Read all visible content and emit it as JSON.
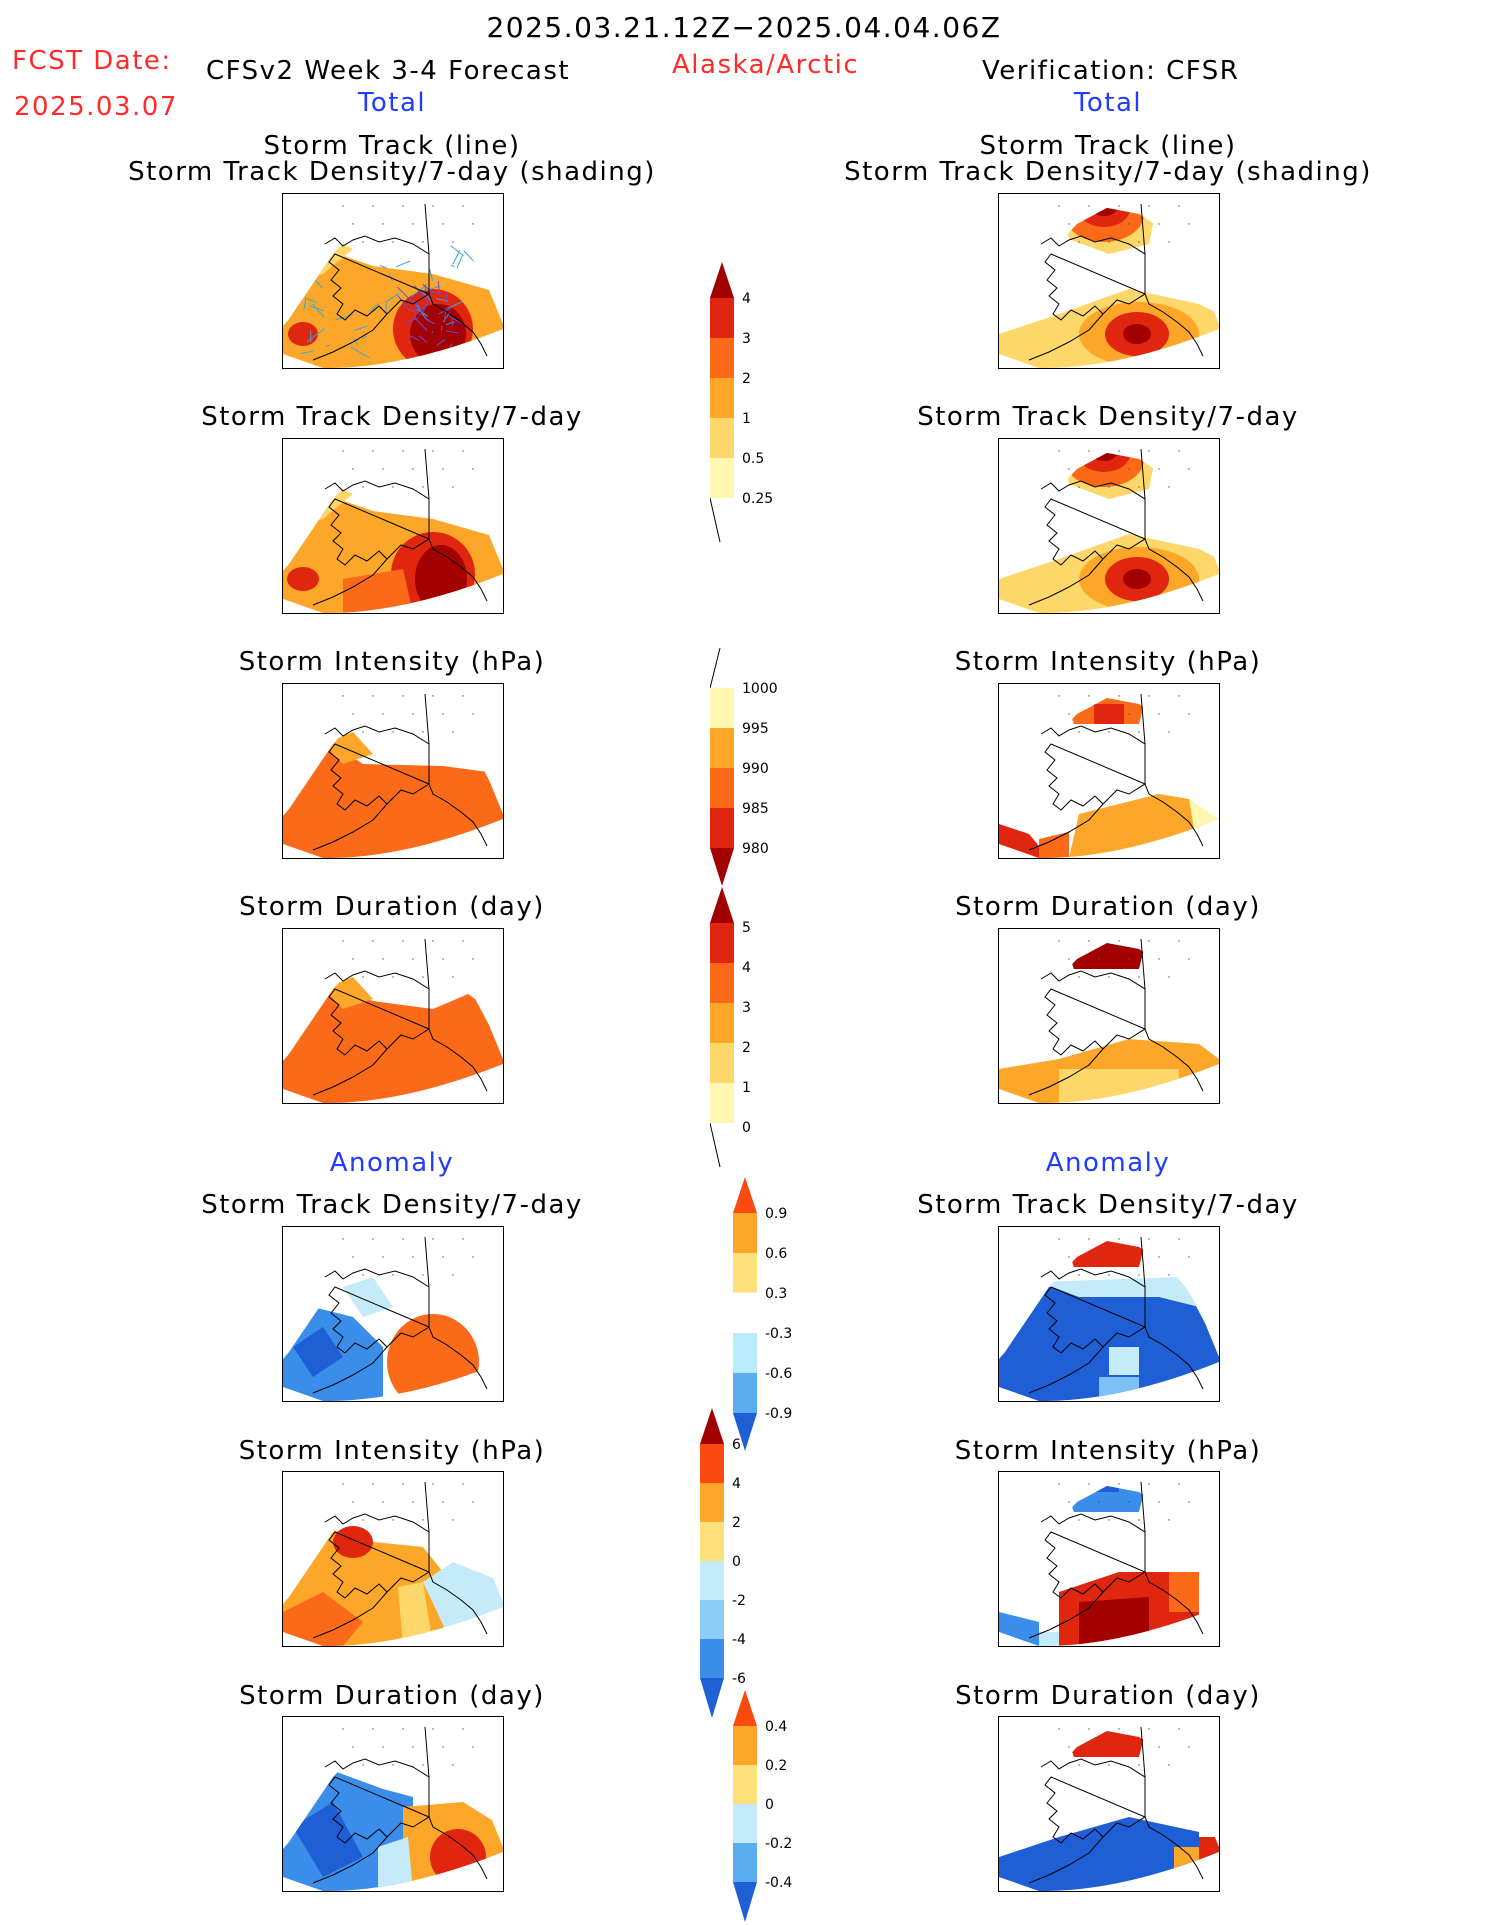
{
  "header": {
    "date_range": "2025.03.21.12Z−2025.04.04.06Z",
    "fcst_label": "FCST Date:",
    "fcst_date": "2025.03.07",
    "model_title": "CFSv2 Week 3-4 Forecast",
    "region": "Alaska/Arctic",
    "verification": "Verification: CFSR",
    "left_total": "Total",
    "right_total": "Total",
    "left_anomaly": "Anomaly",
    "right_anomaly": "Anomaly"
  },
  "panel_titles": {
    "track_line": "Storm Track (line)",
    "track_shading": "Storm Track Density/7-day (shading)",
    "density": "Storm Track Density/7-day",
    "intensity": "Storm Intensity (hPa)",
    "duration": "Storm Duration (day)"
  },
  "colorbars": {
    "density_total": [
      "0.25",
      "0.5",
      "1",
      "2",
      "3",
      "4"
    ],
    "intensity_total": [
      "1000",
      "995",
      "990",
      "985",
      "980"
    ],
    "duration_total": [
      "0",
      "1",
      "2",
      "3",
      "4",
      "5"
    ],
    "density_anom": [
      "-0.9",
      "-0.6",
      "-0.3",
      "0.3",
      "0.6",
      "0.9"
    ],
    "intensity_anom": [
      "-6",
      "-4",
      "-2",
      "0",
      "2",
      "4",
      "6"
    ],
    "duration_anom": [
      "-0.4",
      "-0.2",
      "0",
      "0.2",
      "0.4"
    ]
  },
  "palette": {
    "warm": [
      "#fff7b0",
      "#fdd76a",
      "#fca729",
      "#fb6a19",
      "#e0260f",
      "#a30000"
    ],
    "cool": [
      "#1f5fd6",
      "#3a8de8",
      "#7cc0f5",
      "#c5ebfb"
    ],
    "track_line": "#3aa6d9"
  }
}
